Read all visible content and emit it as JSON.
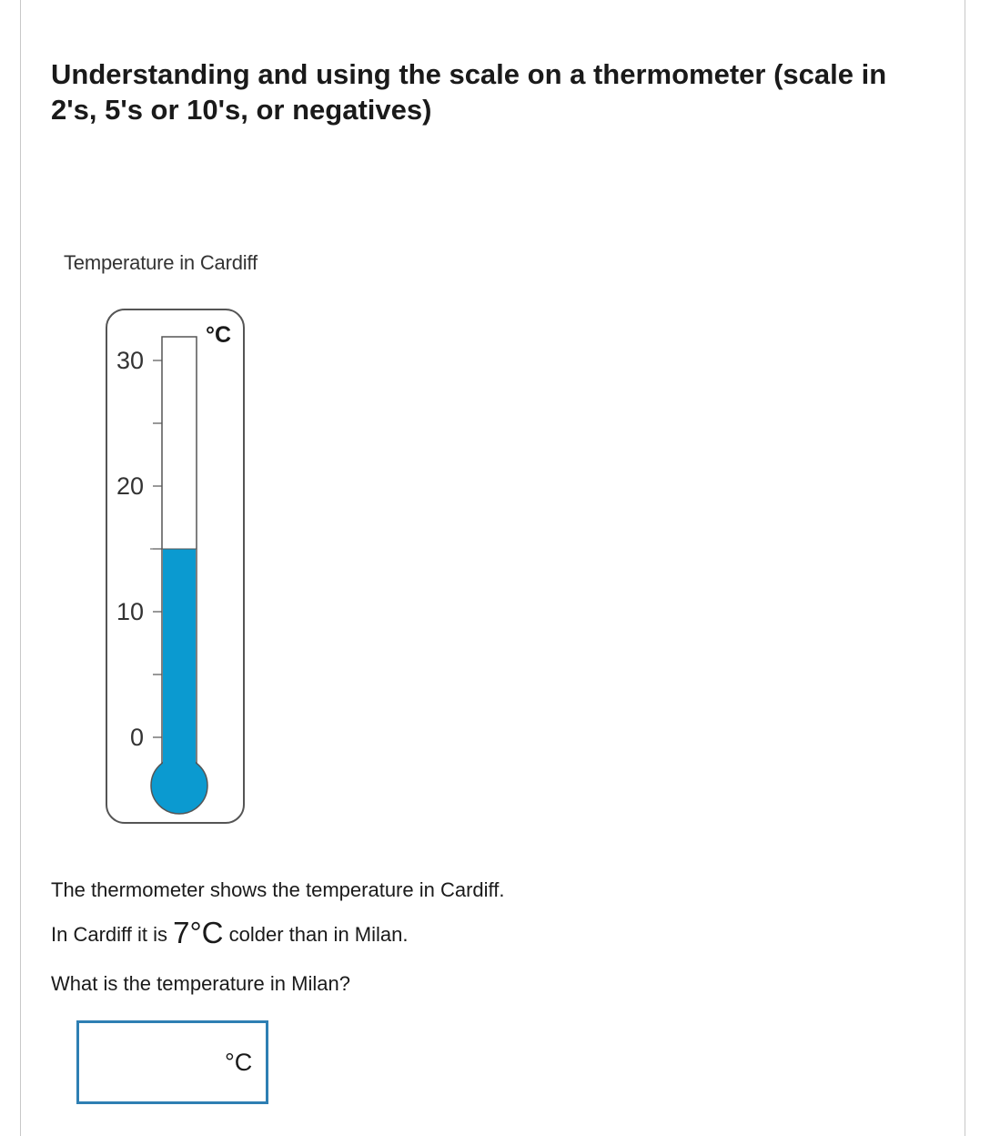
{
  "title": "Understanding and using the scale on a thermometer (scale in 2's, 5's or 10's, or negatives)",
  "figure": {
    "caption": "Temperature in Cardiff",
    "unit_label": "°C",
    "scale_labels": [
      "30",
      "20",
      "10",
      "0"
    ],
    "scale_min": 0,
    "scale_max": 30,
    "major_step": 10,
    "minor_step": 5,
    "reading": 15,
    "fill_color": "#0b9ad0",
    "outline_color": "#555555"
  },
  "question": {
    "line1": "The thermometer shows the temperature in Cardiff.",
    "line2_prefix": "In Cardiff it is ",
    "line2_value": "7°C",
    "line2_suffix": " colder than in Milan.",
    "line3": "What is the temperature in Milan?"
  },
  "answer": {
    "value": "",
    "unit": "°C"
  }
}
